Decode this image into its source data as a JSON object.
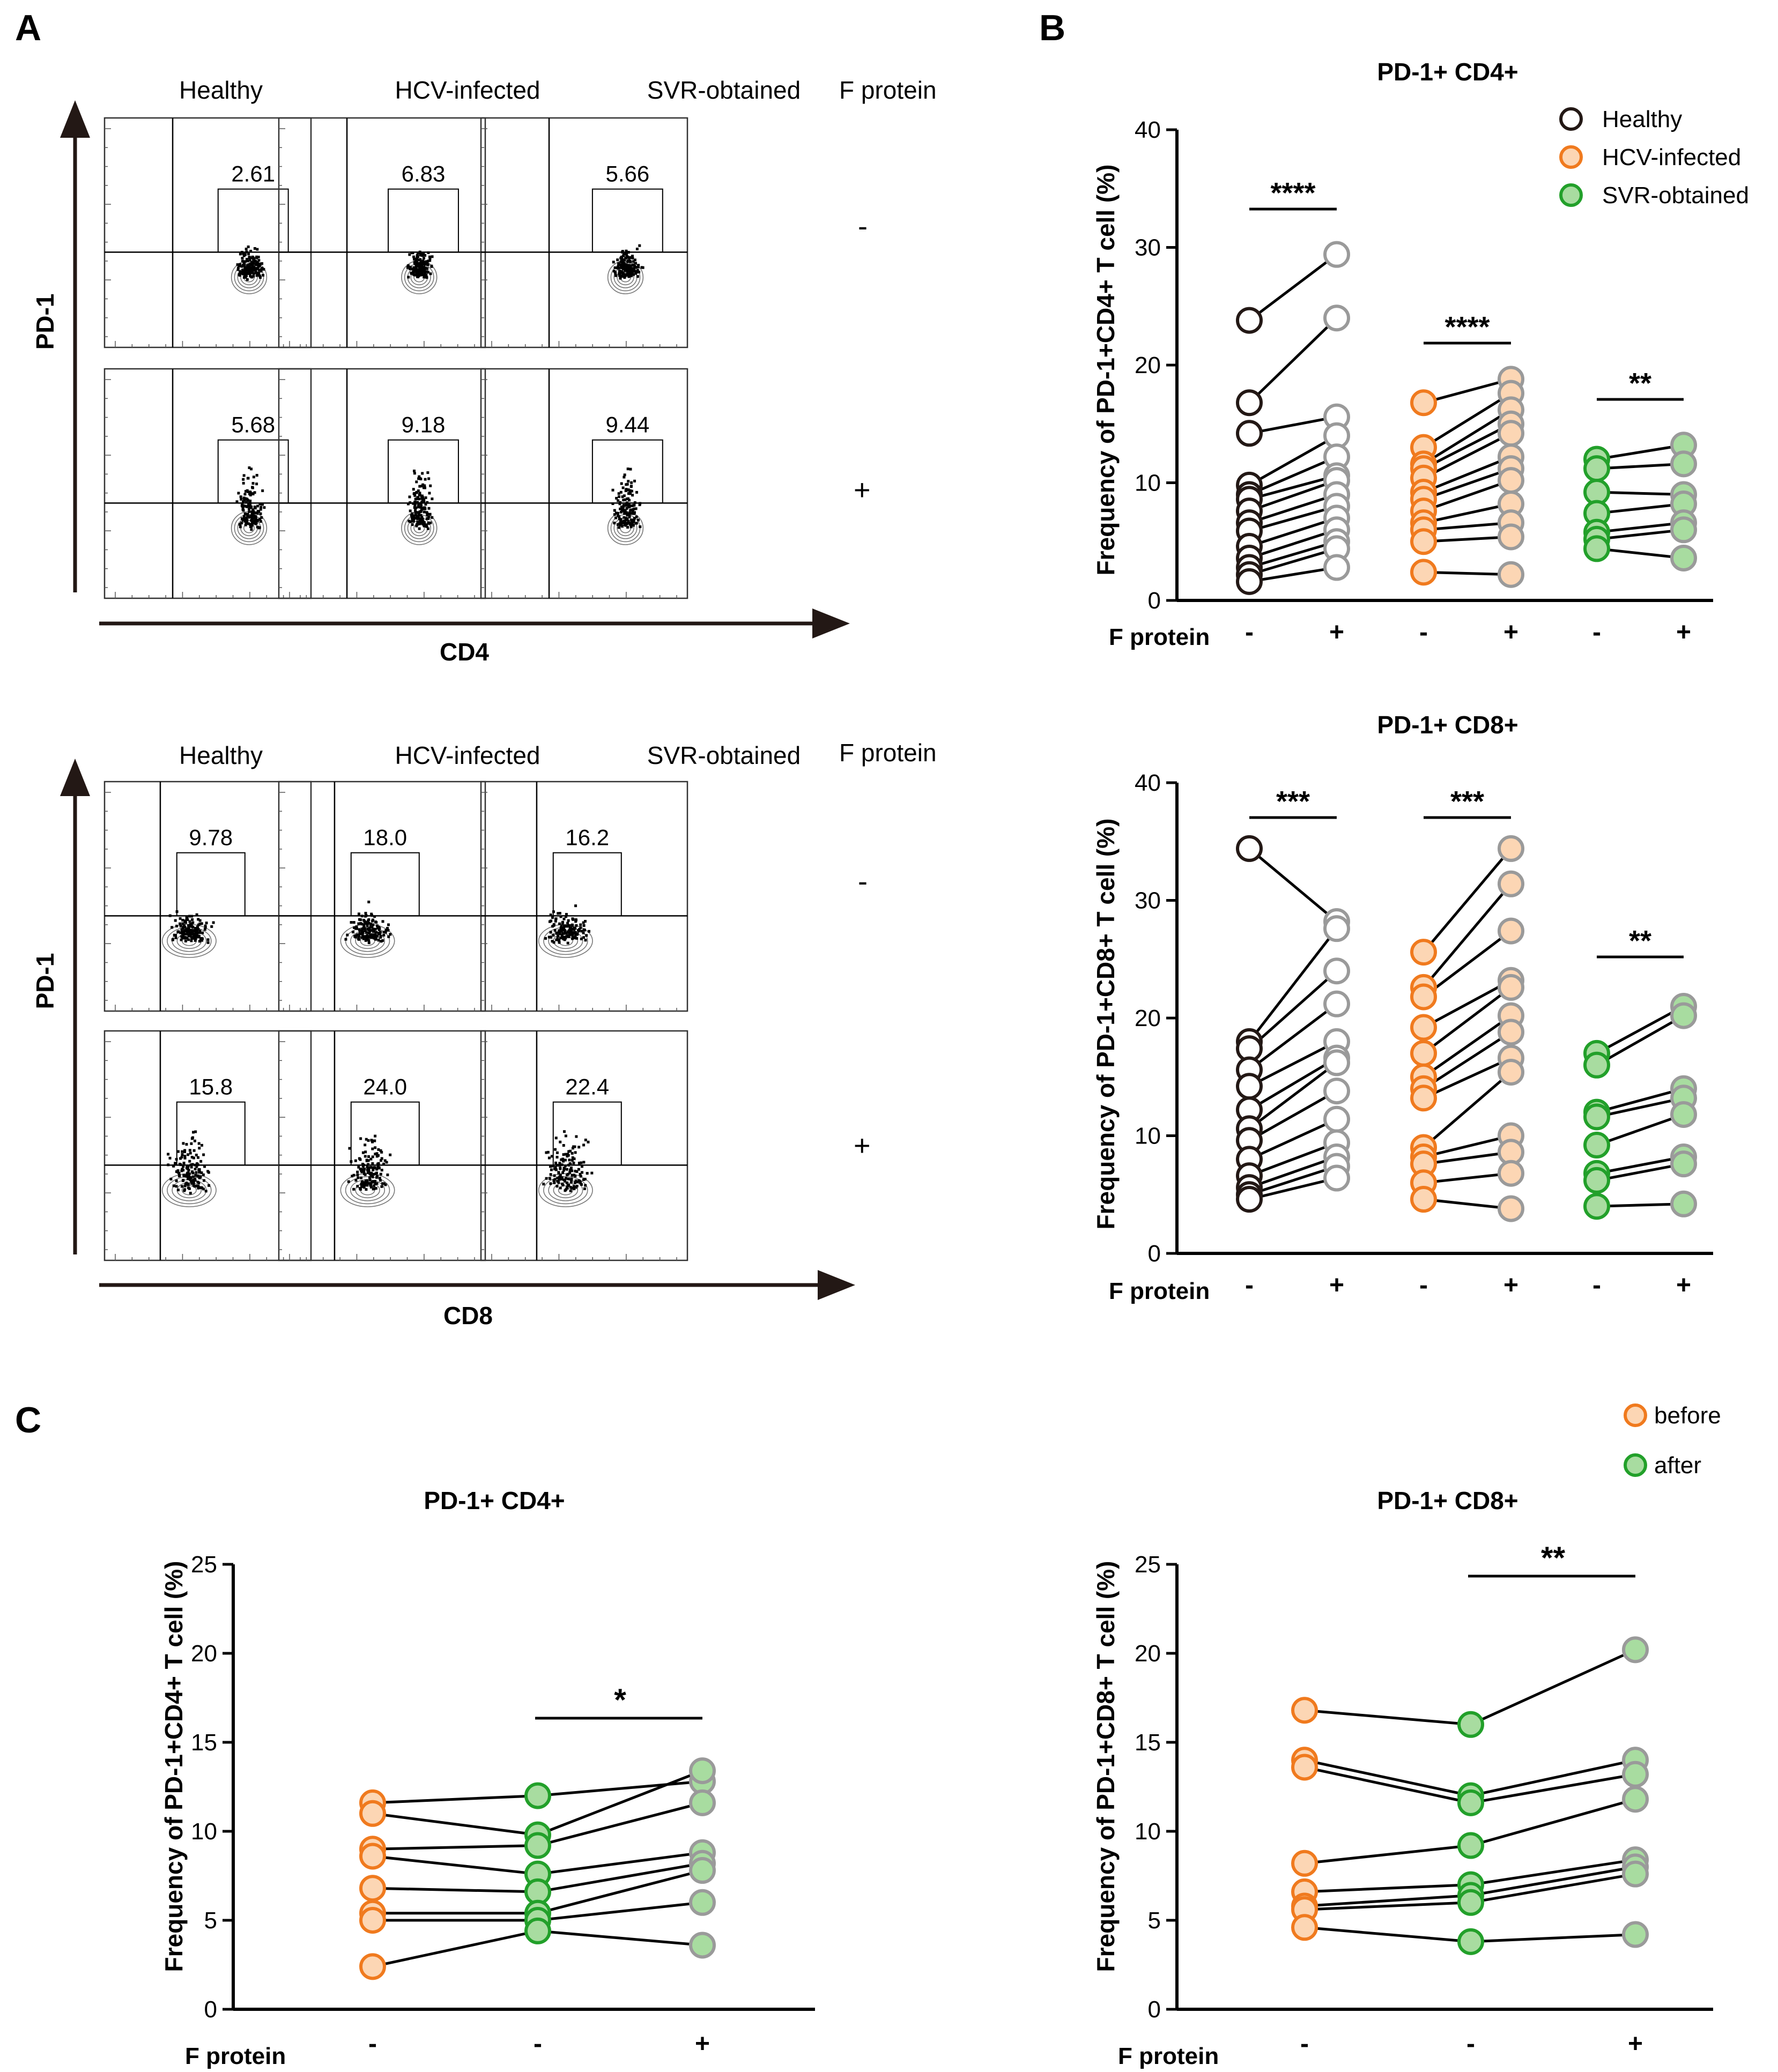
{
  "colors": {
    "healthy_edge": "#231815",
    "healthy_fill": "#ffffff",
    "hcv_edge": "#f07a1e",
    "hcv_fill": "#fcd6b4",
    "svr_edge": "#22a02a",
    "svr_fill": "#a8dca0",
    "after_edge": "#9a9a9a",
    "line": "#000000"
  },
  "panel_a": {
    "label": "A",
    "flow_top": {
      "col_titles": [
        "Healthy",
        "HCV-infected",
        "SVR-obtained"
      ],
      "condition_header": "F protein",
      "row_signs": [
        "-",
        "+"
      ],
      "gate_values": [
        [
          "2.61",
          "6.83",
          "5.66"
        ],
        [
          "5.68",
          "9.18",
          "9.44"
        ]
      ],
      "ylabel": "PD-1",
      "xlabel": "CD4"
    },
    "flow_bottom": {
      "col_titles": [
        "Healthy",
        "HCV-infected",
        "SVR-obtained"
      ],
      "condition_header": "F protein",
      "row_signs": [
        "-",
        "+"
      ],
      "gate_values": [
        [
          "9.78",
          "18.0",
          "16.2"
        ],
        [
          "15.8",
          "24.0",
          "22.4"
        ]
      ],
      "ylabel": "PD-1",
      "xlabel": "CD8"
    }
  },
  "panel_b": {
    "label": "B"
  },
  "panel_c": {
    "label": "C",
    "legend": [
      "before",
      "after"
    ]
  },
  "chart_data": [
    {
      "id": "b_top",
      "type": "scatter",
      "subtype": "paired-dot",
      "title": "PD-1+ CD4+",
      "ylabel": "Frequency of PD-1+CD4+ T cell (%)",
      "ylim": [
        0,
        40
      ],
      "yticks": [
        "0",
        "10",
        "20",
        "30",
        "40"
      ],
      "xrow_label": "F protein",
      "xtick_labels": [
        "-",
        "+",
        "-",
        "+",
        "-",
        "+"
      ],
      "legend": [
        "Healthy",
        "HCV-infected",
        "SVR-obtained"
      ],
      "groups": [
        {
          "name": "Healthy",
          "before": [
            23.8,
            16.8,
            14.2,
            9.8,
            9.0,
            8.6,
            7.6,
            6.6,
            5.9,
            4.6,
            3.6,
            2.8,
            2.2,
            1.6
          ],
          "after": [
            29.4,
            24.0,
            15.6,
            14.0,
            12.2,
            10.6,
            10.2,
            9.0,
            8.0,
            7.0,
            6.0,
            5.0,
            4.4,
            2.8
          ]
        },
        {
          "name": "HCV-infected",
          "before": [
            16.8,
            13.0,
            11.6,
            11.2,
            10.4,
            9.2,
            8.6,
            7.6,
            6.6,
            6.0,
            5.0,
            2.4
          ],
          "after": [
            18.8,
            17.6,
            16.2,
            15.0,
            14.2,
            12.2,
            11.2,
            10.2,
            8.2,
            6.6,
            5.4,
            2.2
          ]
        },
        {
          "name": "SVR-obtained",
          "before": [
            12.0,
            11.2,
            9.2,
            7.4,
            5.8,
            5.2,
            4.4
          ],
          "after": [
            13.2,
            11.6,
            9.0,
            8.2,
            6.6,
            6.0,
            3.6
          ]
        }
      ],
      "significance": [
        "****",
        "****",
        "**"
      ]
    },
    {
      "id": "b_bottom",
      "type": "scatter",
      "subtype": "paired-dot",
      "title": "PD-1+ CD8+",
      "ylabel": "Frequency of PD-1+CD8+ T cell (%)",
      "ylim": [
        0,
        40
      ],
      "yticks": [
        "0",
        "10",
        "20",
        "30",
        "40"
      ],
      "xrow_label": "F protein",
      "xtick_labels": [
        "-",
        "+",
        "-",
        "+",
        "-",
        "+"
      ],
      "groups": [
        {
          "name": "Healthy",
          "before": [
            34.4,
            18.0,
            17.4,
            15.6,
            14.2,
            12.2,
            10.6,
            9.6,
            8.0,
            6.6,
            5.6,
            5.0,
            4.6
          ],
          "after": [
            28.2,
            27.6,
            24.0,
            21.2,
            18.0,
            16.6,
            16.2,
            13.8,
            11.4,
            9.4,
            8.2,
            7.4,
            6.4
          ]
        },
        {
          "name": "HCV-infected",
          "before": [
            25.6,
            22.6,
            21.8,
            19.2,
            17.0,
            15.0,
            14.0,
            13.2,
            9.0,
            8.2,
            7.6,
            6.0,
            4.6
          ],
          "after": [
            34.4,
            31.4,
            27.4,
            23.2,
            22.6,
            20.2,
            18.8,
            16.6,
            15.4,
            10.0,
            8.6,
            6.8,
            3.8
          ]
        },
        {
          "name": "SVR-obtained",
          "before": [
            17.0,
            16.0,
            12.0,
            11.6,
            9.2,
            6.8,
            6.2,
            4.0
          ],
          "after": [
            21.0,
            20.2,
            14.0,
            13.2,
            11.8,
            8.2,
            7.6,
            4.2
          ]
        }
      ],
      "significance": [
        "***",
        "***",
        "**"
      ]
    },
    {
      "id": "c_left",
      "type": "scatter",
      "subtype": "paired-dot-3col",
      "title": "PD-1+ CD4+",
      "ylabel": "Frequency of PD-1+CD4+ T cell (%)",
      "ylim": [
        0,
        25
      ],
      "yticks": [
        "0",
        "5",
        "10",
        "15",
        "20",
        "25"
      ],
      "xrow_label": "F protein",
      "xtick_labels": [
        "-",
        "-",
        "+"
      ],
      "before": [
        11.6,
        11.0,
        9.0,
        8.6,
        6.8,
        5.4,
        5.0,
        2.4
      ],
      "after": [
        12.0,
        9.8,
        9.2,
        7.6,
        6.6,
        5.4,
        5.0,
        4.4
      ],
      "after_f": [
        12.8,
        13.4,
        11.6,
        8.8,
        8.2,
        7.8,
        6.0,
        3.6
      ],
      "significance": [
        "*"
      ]
    },
    {
      "id": "c_right",
      "type": "scatter",
      "subtype": "paired-dot-3col",
      "title": "PD-1+ CD8+",
      "ylabel": "Frequency of PD-1+CD8+ T cell (%)",
      "ylim": [
        0,
        25
      ],
      "yticks": [
        "0",
        "5",
        "10",
        "15",
        "20",
        "25"
      ],
      "xrow_label": "F protein",
      "xtick_labels": [
        "-",
        "-",
        "+"
      ],
      "before": [
        16.8,
        14.0,
        13.6,
        8.2,
        6.6,
        5.8,
        5.6,
        4.6
      ],
      "after": [
        16.0,
        12.0,
        11.6,
        9.2,
        7.0,
        6.4,
        6.0,
        3.8
      ],
      "after_f": [
        20.2,
        14.0,
        13.2,
        11.8,
        8.4,
        8.0,
        7.6,
        4.2
      ],
      "significance": [
        "**"
      ]
    }
  ]
}
